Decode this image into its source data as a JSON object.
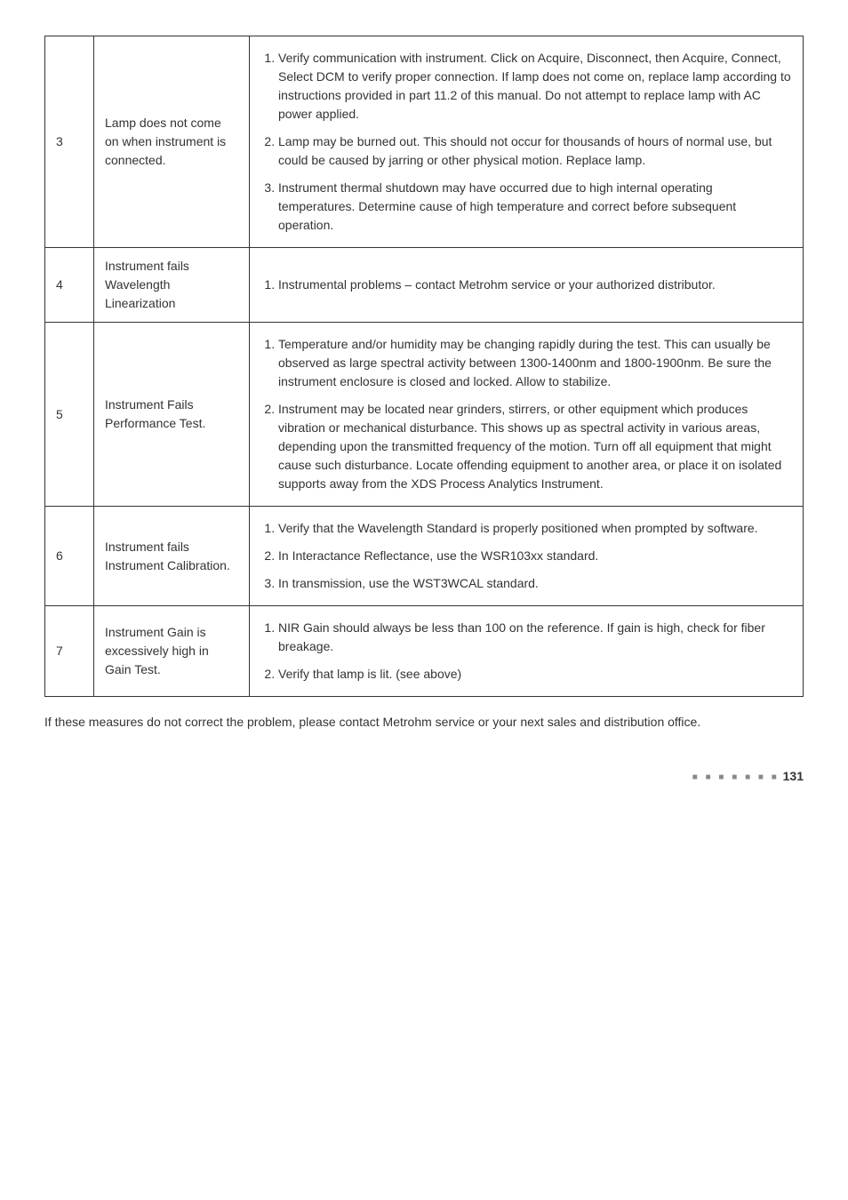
{
  "rows": [
    {
      "num": "3",
      "label": "Lamp does not come on when instrument is connected.",
      "items": [
        "Verify communication with instrument. Click on Acquire, Disconnect, then Acquire, Connect, Select DCM to verify proper connection. If lamp does not come on, replace lamp according to instructions provided in part 11.2 of this manual. Do not attempt to replace lamp with AC power applied.",
        "Lamp may be burned out. This should not occur for thousands of hours of normal use, but could be caused by jarring or other physical motion. Replace lamp.",
        "Instrument thermal shutdown may have occurred due to high internal operating temperatures. Determine cause of high temperature and correct before subsequent operation."
      ]
    },
    {
      "num": "4",
      "label": "Instrument fails Wavelength Linearization",
      "items": [
        "Instrumental problems – contact Metrohm service or your authorized distributor."
      ]
    },
    {
      "num": "5",
      "label": "Instrument Fails Performance Test.",
      "items": [
        "Temperature and/or humidity may be changing rapidly during the test. This can usually be observed as large spectral activity between 1300-1400nm and 1800-1900nm. Be sure the instrument enclosure is closed and locked. Allow to stabilize.",
        "Instrument may be located near grinders, stirrers, or other equipment which produces vibration or mechanical disturbance. This shows up as spectral activity in various areas, depending upon the transmitted frequency of the motion. Turn off all equipment that might cause such disturbance. Locate offending equipment to another area, or place it on isolated supports away from the XDS Process Analytics Instrument."
      ]
    },
    {
      "num": "6",
      "label": "Instrument fails Instrument Calibration.",
      "items": [
        "Verify that the Wavelength Standard is properly positioned when prompted by software.",
        "In Interactance Reflectance, use the WSR103xx standard.",
        "In transmission, use the WST3WCAL standard."
      ]
    },
    {
      "num": "7",
      "label": "Instrument Gain is excessively high in Gain Test.",
      "items": [
        "NIR Gain should always be less than 100 on the reference. If gain is high, check for fiber breakage.",
        "Verify that lamp is lit. (see above)"
      ]
    }
  ],
  "footer": "If these measures do not correct the problem, please contact Metrohm service or your next sales and distribution office.",
  "page": "131"
}
